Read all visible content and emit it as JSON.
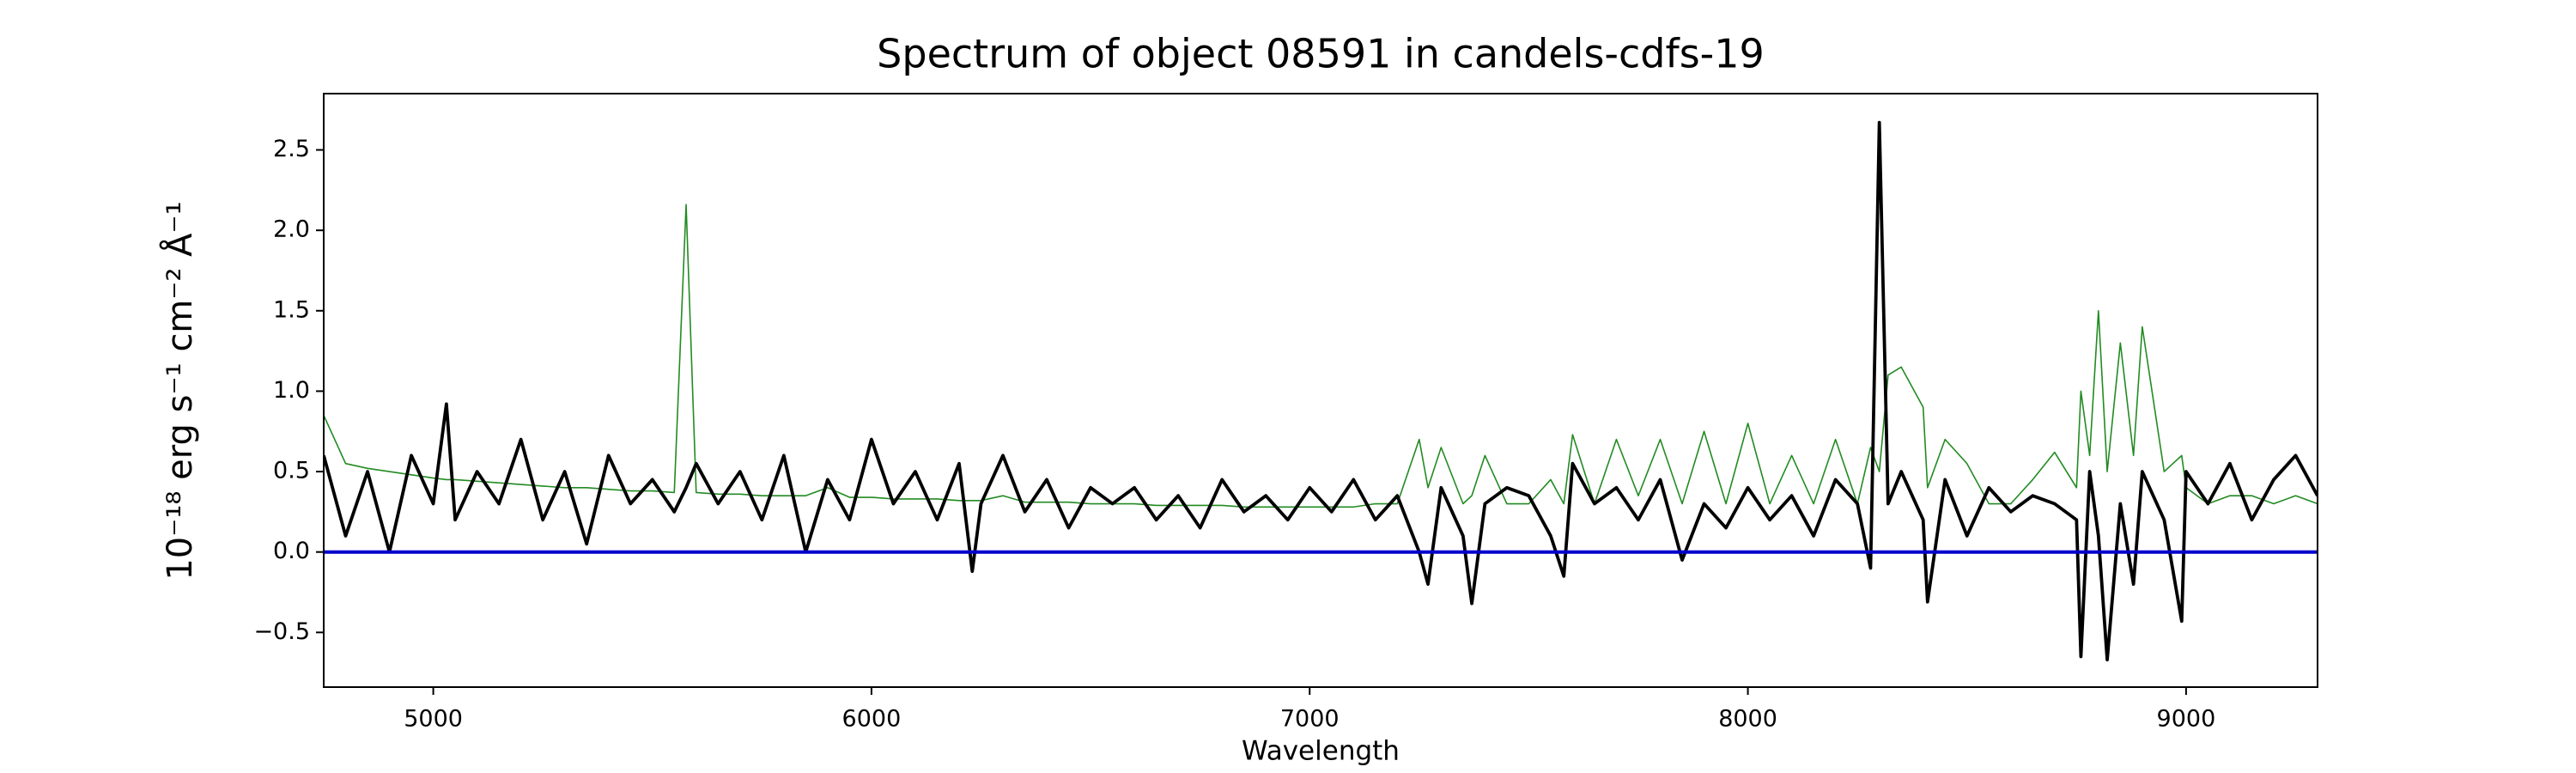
{
  "chart_data": {
    "type": "line",
    "title": "Spectrum of object 08591 in candels-cdfs-19",
    "x_label": "Wavelength",
    "y_label": "10⁻¹⁸ erg s⁻¹ cm⁻² Å⁻¹",
    "x": [
      4750,
      4800,
      4850,
      4900,
      4950,
      5000,
      5030,
      5050,
      5100,
      5150,
      5200,
      5250,
      5300,
      5350,
      5400,
      5450,
      5500,
      5550,
      5577,
      5600,
      5650,
      5700,
      5750,
      5800,
      5850,
      5900,
      5950,
      6000,
      6050,
      6100,
      6150,
      6200,
      6230,
      6250,
      6300,
      6350,
      6400,
      6450,
      6500,
      6550,
      6600,
      6650,
      6700,
      6750,
      6800,
      6850,
      6900,
      6950,
      7000,
      7050,
      7100,
      7150,
      7200,
      7250,
      7270,
      7300,
      7350,
      7370,
      7400,
      7450,
      7500,
      7550,
      7580,
      7600,
      7650,
      7700,
      7750,
      7800,
      7850,
      7900,
      7950,
      8000,
      8050,
      8100,
      8150,
      8200,
      8250,
      8280,
      8300,
      8320,
      8350,
      8400,
      8410,
      8450,
      8500,
      8550,
      8600,
      8650,
      8700,
      8750,
      8760,
      8780,
      8800,
      8820,
      8850,
      8880,
      8900,
      8950,
      8990,
      9000,
      9050,
      9100,
      9150,
      9200,
      9250,
      9300
    ],
    "series": [
      {
        "color": "#228b22",
        "values": [
          0.85,
          0.55,
          0.52,
          0.5,
          0.48,
          0.46,
          0.45,
          0.45,
          0.44,
          0.43,
          0.42,
          0.41,
          0.4,
          0.4,
          0.39,
          0.38,
          0.38,
          0.37,
          2.16,
          0.37,
          0.36,
          0.36,
          0.35,
          0.35,
          0.35,
          0.4,
          0.34,
          0.34,
          0.33,
          0.33,
          0.33,
          0.32,
          0.32,
          0.32,
          0.35,
          0.31,
          0.31,
          0.31,
          0.3,
          0.3,
          0.3,
          0.29,
          0.29,
          0.29,
          0.29,
          0.28,
          0.28,
          0.28,
          0.28,
          0.28,
          0.28,
          0.3,
          0.3,
          0.7,
          0.4,
          0.65,
          0.3,
          0.35,
          0.6,
          0.3,
          0.3,
          0.45,
          0.3,
          0.73,
          0.3,
          0.7,
          0.35,
          0.7,
          0.3,
          0.75,
          0.3,
          0.8,
          0.3,
          0.6,
          0.3,
          0.7,
          0.3,
          0.65,
          0.5,
          1.1,
          1.15,
          0.9,
          0.4,
          0.7,
          0.55,
          0.3,
          0.3,
          0.45,
          0.62,
          0.4,
          1.0,
          0.6,
          1.5,
          0.5,
          1.3,
          0.6,
          1.4,
          0.5,
          0.6,
          0.4,
          0.3,
          0.35,
          0.35,
          0.3,
          0.35,
          0.3
        ]
      },
      {
        "color": "#000000",
        "values": [
          0.6,
          0.1,
          0.5,
          0.0,
          0.6,
          0.3,
          0.92,
          0.2,
          0.5,
          0.3,
          0.7,
          0.2,
          0.5,
          0.05,
          0.6,
          0.3,
          0.45,
          0.25,
          0.4,
          0.55,
          0.3,
          0.5,
          0.2,
          0.6,
          0.0,
          0.45,
          0.2,
          0.7,
          0.3,
          0.5,
          0.2,
          0.55,
          -0.12,
          0.3,
          0.6,
          0.25,
          0.45,
          0.15,
          0.4,
          0.3,
          0.4,
          0.2,
          0.35,
          0.15,
          0.45,
          0.25,
          0.35,
          0.2,
          0.4,
          0.25,
          0.45,
          0.2,
          0.35,
          0.0,
          -0.2,
          0.4,
          0.1,
          -0.32,
          0.3,
          0.4,
          0.35,
          0.1,
          -0.15,
          0.55,
          0.3,
          0.4,
          0.2,
          0.45,
          -0.05,
          0.3,
          0.15,
          0.4,
          0.2,
          0.35,
          0.1,
          0.45,
          0.3,
          -0.1,
          2.67,
          0.3,
          0.5,
          0.2,
          -0.31,
          0.45,
          0.1,
          0.4,
          0.25,
          0.35,
          0.3,
          0.2,
          -0.65,
          0.5,
          0.1,
          -0.67,
          0.3,
          -0.2,
          0.5,
          0.2,
          -0.43,
          0.5,
          0.3,
          0.55,
          0.2,
          0.45,
          0.6,
          0.35
        ]
      }
    ],
    "hlines": [
      {
        "y": 0,
        "color": "#0000cc"
      }
    ],
    "xlim": [
      4750,
      9300
    ],
    "ylim": [
      -0.84,
      2.85
    ],
    "xticks": [
      5000,
      6000,
      7000,
      8000,
      9000
    ],
    "yticks": [
      {
        "value": -0.5,
        "label": "−0.5"
      },
      {
        "value": 0,
        "label": "0.0"
      },
      0.5,
      {
        "value": 1,
        "label": "1.0"
      },
      1.5,
      {
        "value": 2,
        "label": "2.0"
      },
      2.5
    ]
  }
}
